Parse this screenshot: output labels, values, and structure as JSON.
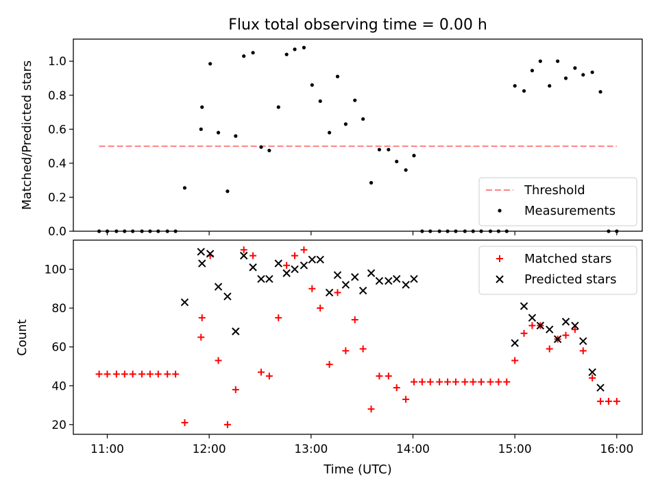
{
  "chart_data": [
    {
      "type": "scatter",
      "title": "Flux total observing time = 0.00 h",
      "ylabel": "Matched/Predicted stars",
      "xlim": [
        10.667,
        16.25
      ],
      "ylim": [
        0,
        1.13
      ],
      "yticks": [
        0.0,
        0.2,
        0.4,
        0.6,
        0.8,
        1.0
      ],
      "ytick_labels": [
        "0.0",
        "0.2",
        "0.4",
        "0.6",
        "0.8",
        "1.0"
      ],
      "legend_position": "lower right",
      "threshold": {
        "name": "Threshold",
        "y": 0.5,
        "x_start": 10.92,
        "x_end": 16.0,
        "color": "#ff8080",
        "style": "dashed"
      },
      "series": [
        {
          "name": "Measurements",
          "color": "#000000",
          "marker": "dot",
          "points": [
            [
              10.92,
              0.0
            ],
            [
              11.0,
              0.0
            ],
            [
              11.09,
              0.0
            ],
            [
              11.17,
              0.0
            ],
            [
              11.25,
              0.0
            ],
            [
              11.34,
              0.0
            ],
            [
              11.42,
              0.0
            ],
            [
              11.5,
              0.0
            ],
            [
              11.59,
              0.0
            ],
            [
              11.67,
              0.0
            ],
            [
              11.76,
              0.255
            ],
            [
              11.92,
              0.6
            ],
            [
              11.93,
              0.73
            ],
            [
              12.01,
              0.985
            ],
            [
              12.09,
              0.58
            ],
            [
              12.18,
              0.235
            ],
            [
              12.26,
              0.56
            ],
            [
              12.34,
              1.03
            ],
            [
              12.43,
              1.05
            ],
            [
              12.51,
              0.495
            ],
            [
              12.59,
              0.475
            ],
            [
              12.68,
              0.73
            ],
            [
              12.76,
              1.04
            ],
            [
              12.84,
              1.07
            ],
            [
              12.93,
              1.08
            ],
            [
              13.01,
              0.86
            ],
            [
              13.09,
              0.765
            ],
            [
              13.18,
              0.58
            ],
            [
              13.26,
              0.91
            ],
            [
              13.34,
              0.63
            ],
            [
              13.43,
              0.77
            ],
            [
              13.51,
              0.66
            ],
            [
              13.59,
              0.285
            ],
            [
              13.67,
              0.48
            ],
            [
              13.76,
              0.48
            ],
            [
              13.84,
              0.41
            ],
            [
              13.93,
              0.36
            ],
            [
              14.01,
              0.445
            ],
            [
              14.09,
              0.0
            ],
            [
              14.17,
              0.0
            ],
            [
              14.26,
              0.0
            ],
            [
              14.34,
              0.0
            ],
            [
              14.42,
              0.0
            ],
            [
              14.51,
              0.0
            ],
            [
              14.59,
              0.0
            ],
            [
              14.67,
              0.0
            ],
            [
              14.76,
              0.0
            ],
            [
              14.84,
              0.0
            ],
            [
              14.92,
              0.0
            ],
            [
              15.0,
              0.855
            ],
            [
              15.09,
              0.825
            ],
            [
              15.17,
              0.945
            ],
            [
              15.25,
              1.0
            ],
            [
              15.34,
              0.855
            ],
            [
              15.42,
              1.0
            ],
            [
              15.5,
              0.9
            ],
            [
              15.59,
              0.96
            ],
            [
              15.67,
              0.92
            ],
            [
              15.76,
              0.935
            ],
            [
              15.84,
              0.82
            ],
            [
              15.92,
              0.0
            ],
            [
              16.0,
              0.0
            ]
          ]
        }
      ]
    },
    {
      "type": "scatter",
      "xlabel": "Time (UTC)",
      "ylabel": "Count",
      "xlim": [
        10.667,
        16.25
      ],
      "ylim": [
        15,
        115
      ],
      "xticks": [
        11,
        12,
        13,
        14,
        15,
        16
      ],
      "xtick_labels": [
        "11:00",
        "12:00",
        "13:00",
        "14:00",
        "15:00",
        "16:00"
      ],
      "yticks": [
        20,
        40,
        60,
        80,
        100
      ],
      "ytick_labels": [
        "20",
        "40",
        "60",
        "80",
        "100"
      ],
      "legend_position": "upper right",
      "series": [
        {
          "name": "Matched stars",
          "color": "#ff0000",
          "marker": "plus",
          "points": [
            [
              10.92,
              46
            ],
            [
              11.0,
              46
            ],
            [
              11.09,
              46
            ],
            [
              11.17,
              46
            ],
            [
              11.25,
              46
            ],
            [
              11.34,
              46
            ],
            [
              11.42,
              46
            ],
            [
              11.5,
              46
            ],
            [
              11.59,
              46
            ],
            [
              11.67,
              46
            ],
            [
              11.76,
              21
            ],
            [
              11.92,
              65
            ],
            [
              11.93,
              75
            ],
            [
              12.01,
              107
            ],
            [
              12.09,
              53
            ],
            [
              12.18,
              20
            ],
            [
              12.26,
              38
            ],
            [
              12.34,
              110
            ],
            [
              12.43,
              107
            ],
            [
              12.51,
              47
            ],
            [
              12.59,
              45
            ],
            [
              12.68,
              75
            ],
            [
              12.76,
              102
            ],
            [
              12.84,
              107
            ],
            [
              12.93,
              110
            ],
            [
              13.01,
              90
            ],
            [
              13.09,
              80
            ],
            [
              13.18,
              51
            ],
            [
              13.26,
              88
            ],
            [
              13.34,
              58
            ],
            [
              13.43,
              74
            ],
            [
              13.51,
              59
            ],
            [
              13.59,
              28
            ],
            [
              13.67,
              45
            ],
            [
              13.76,
              45
            ],
            [
              13.84,
              39
            ],
            [
              13.93,
              33
            ],
            [
              14.01,
              42
            ],
            [
              14.09,
              42
            ],
            [
              14.17,
              42
            ],
            [
              14.26,
              42
            ],
            [
              14.34,
              42
            ],
            [
              14.42,
              42
            ],
            [
              14.51,
              42
            ],
            [
              14.59,
              42
            ],
            [
              14.67,
              42
            ],
            [
              14.76,
              42
            ],
            [
              14.84,
              42
            ],
            [
              14.92,
              42
            ],
            [
              15.0,
              53
            ],
            [
              15.09,
              67
            ],
            [
              15.17,
              71
            ],
            [
              15.25,
              71
            ],
            [
              15.34,
              59
            ],
            [
              15.42,
              64
            ],
            [
              15.5,
              66
            ],
            [
              15.59,
              69
            ],
            [
              15.67,
              58
            ],
            [
              15.76,
              44
            ],
            [
              15.84,
              32
            ],
            [
              15.92,
              32
            ],
            [
              16.0,
              32
            ]
          ]
        },
        {
          "name": "Predicted stars",
          "color": "#000000",
          "marker": "x",
          "points": [
            [
              11.76,
              83
            ],
            [
              11.92,
              109
            ],
            [
              11.93,
              103
            ],
            [
              12.01,
              108
            ],
            [
              12.09,
              91
            ],
            [
              12.18,
              86
            ],
            [
              12.26,
              68
            ],
            [
              12.34,
              107
            ],
            [
              12.43,
              101
            ],
            [
              12.51,
              95
            ],
            [
              12.59,
              95
            ],
            [
              12.68,
              103
            ],
            [
              12.76,
              98
            ],
            [
              12.84,
              100
            ],
            [
              12.93,
              102
            ],
            [
              13.01,
              105
            ],
            [
              13.09,
              105
            ],
            [
              13.18,
              88
            ],
            [
              13.26,
              97
            ],
            [
              13.34,
              92
            ],
            [
              13.43,
              96
            ],
            [
              13.51,
              89
            ],
            [
              13.59,
              98
            ],
            [
              13.67,
              94
            ],
            [
              13.76,
              94
            ],
            [
              13.84,
              95
            ],
            [
              13.93,
              92
            ],
            [
              14.01,
              95
            ],
            [
              15.0,
              62
            ],
            [
              15.09,
              81
            ],
            [
              15.17,
              75
            ],
            [
              15.25,
              71
            ],
            [
              15.34,
              69
            ],
            [
              15.42,
              64
            ],
            [
              15.5,
              73
            ],
            [
              15.59,
              71
            ],
            [
              15.67,
              63
            ],
            [
              15.76,
              47
            ],
            [
              15.84,
              39
            ]
          ]
        }
      ]
    }
  ]
}
